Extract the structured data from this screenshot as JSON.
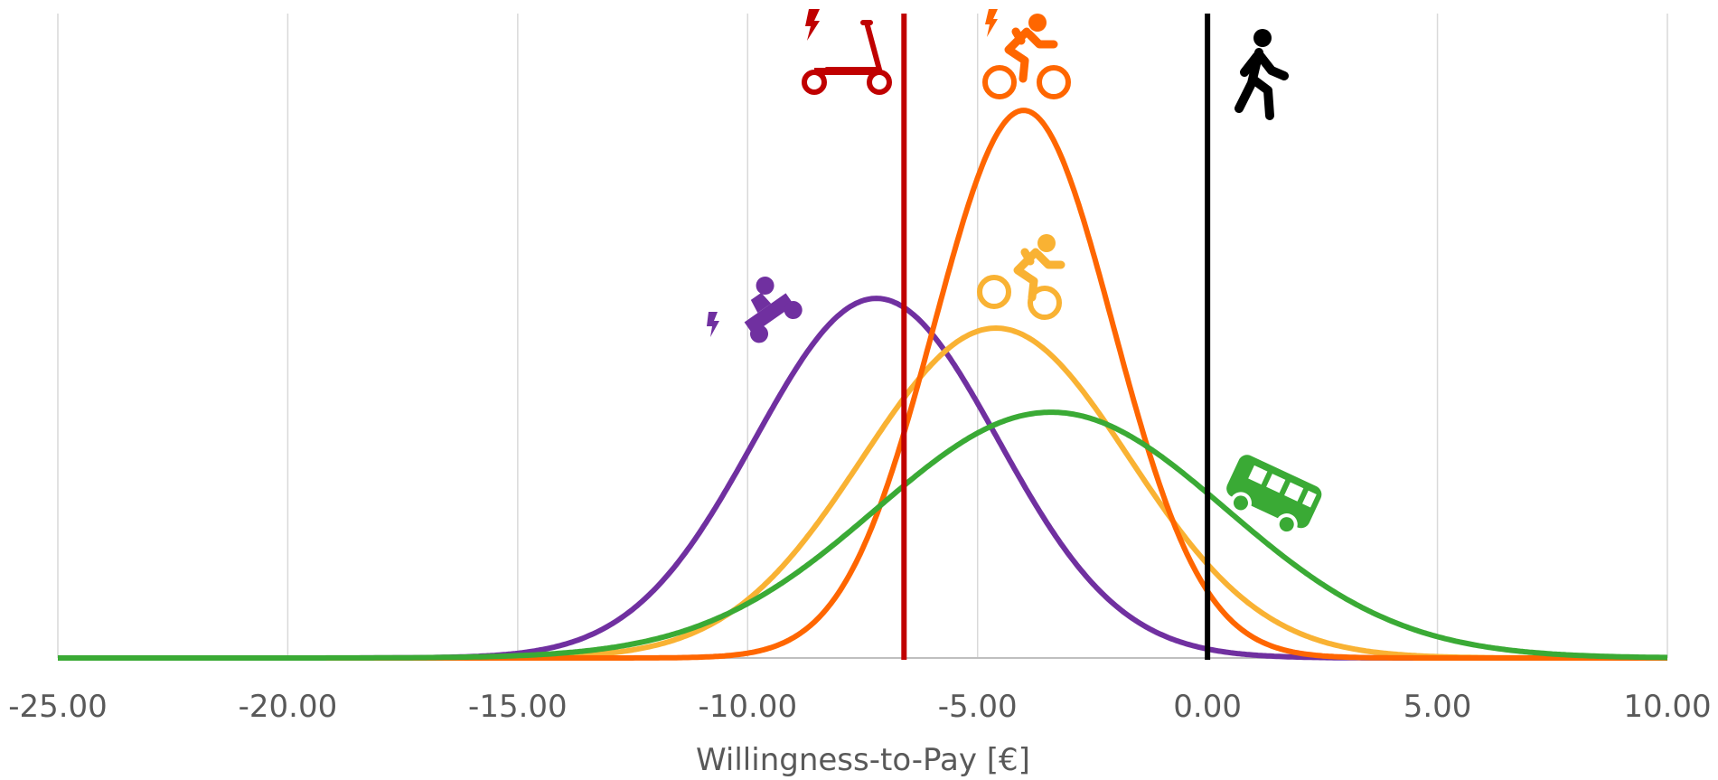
{
  "chart_data": {
    "type": "line",
    "title": "",
    "xlabel": "Willingness-to-Pay [€]",
    "ylabel": "",
    "xlim": [
      -25,
      10
    ],
    "x_ticks": [
      -25,
      -20,
      -15,
      -10,
      -5,
      0,
      5,
      10
    ],
    "x_tick_labels": [
      "-25.00",
      "-20.00",
      "-15.00",
      "-10.00",
      "-5.00",
      "0.00",
      "5.00",
      "10.00"
    ],
    "grid": true,
    "legend": "none",
    "distribution": "normal",
    "series": [
      {
        "icon": "e-moped-icon",
        "color": "#7030a0",
        "mean": -7.2,
        "sd": 2.65,
        "peak": 1.09
      },
      {
        "icon": "bicycle-icon",
        "color": "#f9b233",
        "mean": -4.6,
        "sd": 2.9,
        "peak": 1.0
      },
      {
        "icon": "e-bike-icon",
        "color": "#ff6600",
        "mean": -4.0,
        "sd": 1.95,
        "peak": 1.66
      },
      {
        "icon": "bus-icon",
        "color": "#3aaa35",
        "mean": -3.4,
        "sd": 3.8,
        "peak": 0.745
      }
    ],
    "reference_lines": [
      {
        "icon": "e-scooter-icon",
        "color": "#c00000",
        "x": -6.6
      },
      {
        "icon": "walking-icon",
        "color": "#000000",
        "x": 0.0
      }
    ]
  }
}
